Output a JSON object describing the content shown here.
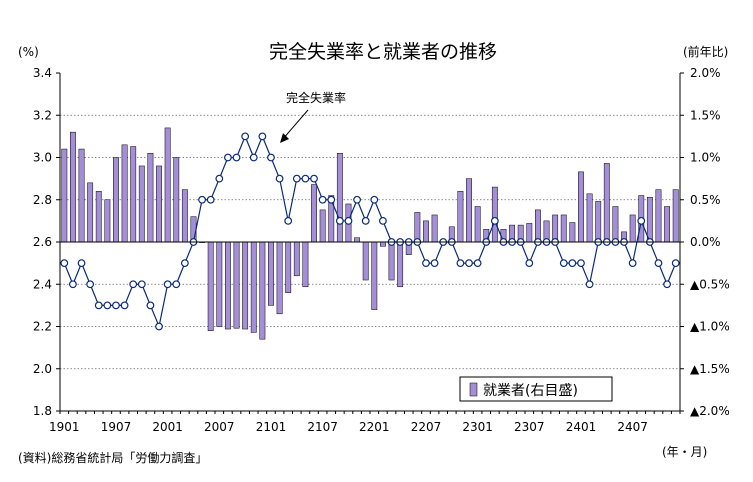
{
  "chart_data": {
    "type": "bar+line",
    "title": "完全失業率と就業者の推移",
    "left_unit": "(%)",
    "right_unit": "(前年比)",
    "x_unit": "(年・月)",
    "source": "(資料)総務省統計局「労働力調査」",
    "annotation": "完全失業率",
    "left_axis": {
      "ylim": [
        1.8,
        3.4
      ],
      "ticks": [
        "1.8",
        "2.0",
        "2.2",
        "2.4",
        "2.6",
        "2.8",
        "3.0",
        "3.2",
        "3.4"
      ]
    },
    "right_axis": {
      "ylim": [
        -2.0,
        2.0
      ],
      "ticks": [
        "▲2.0%",
        "▲1.5%",
        "▲1.0%",
        "▲0.5%",
        "0.0%",
        "0.5%",
        "1.0%",
        "1.5%",
        "2.0%"
      ]
    },
    "x_ticks": [
      "1901",
      "1907",
      "2001",
      "2007",
      "2101",
      "2107",
      "2201",
      "2207",
      "2301",
      "2307",
      "2401",
      "2407"
    ],
    "x_tick_index": [
      0,
      6,
      12,
      18,
      24,
      30,
      36,
      42,
      48,
      54,
      60,
      66
    ],
    "legend": "就業者(右目盛)",
    "grid": true,
    "series": [
      {
        "name": "就業者(右目盛)",
        "axis": "right",
        "kind": "bar",
        "values": [
          1.1,
          1.3,
          1.1,
          0.7,
          0.6,
          0.5,
          1.0,
          1.15,
          1.13,
          0.9,
          1.05,
          0.9,
          1.35,
          1.0,
          0.62,
          0.3,
          0.0,
          -1.05,
          -1.0,
          -1.03,
          -1.02,
          -1.03,
          -1.07,
          -1.15,
          -0.75,
          -0.85,
          -0.6,
          -0.4,
          -0.53,
          0.68,
          0.38,
          0.55,
          1.05,
          0.45,
          0.05,
          -0.45,
          -0.8,
          -0.05,
          -0.45,
          -0.53,
          -0.15,
          0.35,
          0.25,
          0.32,
          -0.02,
          0.18,
          0.6,
          0.75,
          0.42,
          0.15,
          0.65,
          0.15,
          0.2,
          0.2,
          0.22,
          0.38,
          0.25,
          0.32,
          0.32,
          0.23,
          0.83,
          0.57,
          0.48,
          0.93,
          0.42,
          0.12,
          0.32,
          0.55,
          0.53,
          0.62,
          0.42,
          0.62
        ]
      },
      {
        "name": "完全失業率",
        "axis": "left",
        "kind": "line",
        "values": [
          2.5,
          2.4,
          2.5,
          2.4,
          2.3,
          2.3,
          2.3,
          2.3,
          2.4,
          2.4,
          2.3,
          2.2,
          2.4,
          2.4,
          2.5,
          2.6,
          2.8,
          2.8,
          2.9,
          3.0,
          3.0,
          3.1,
          3.0,
          3.1,
          3.0,
          2.9,
          2.7,
          2.9,
          2.9,
          2.9,
          2.8,
          2.8,
          2.7,
          2.7,
          2.8,
          2.7,
          2.8,
          2.7,
          2.6,
          2.6,
          2.6,
          2.6,
          2.5,
          2.5,
          2.6,
          2.6,
          2.5,
          2.5,
          2.5,
          2.6,
          2.7,
          2.6,
          2.6,
          2.6,
          2.5,
          2.6,
          2.6,
          2.6,
          2.5,
          2.5,
          2.5,
          2.4,
          2.6,
          2.6,
          2.6,
          2.6,
          2.5,
          2.7,
          2.6,
          2.5,
          2.4,
          2.5
        ]
      }
    ]
  }
}
